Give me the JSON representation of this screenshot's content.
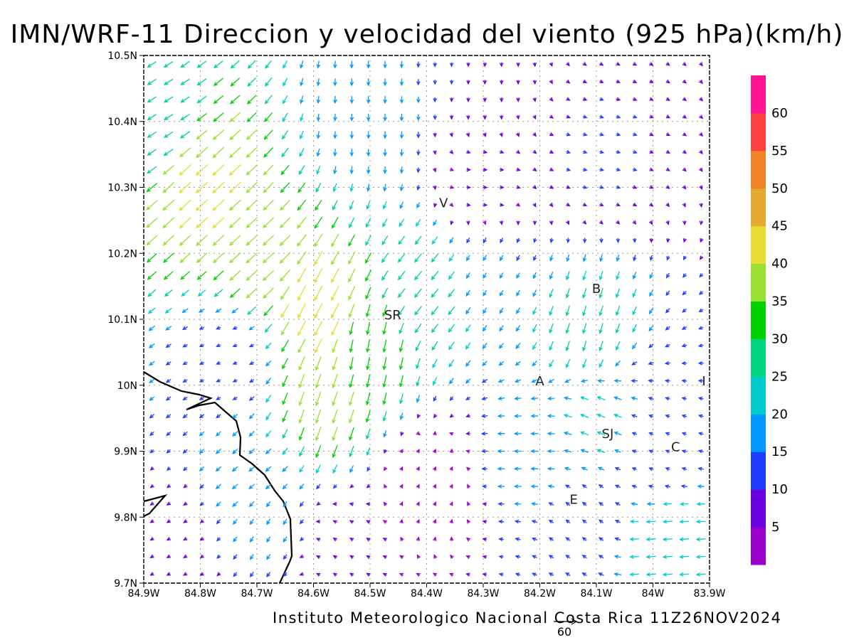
{
  "title": "IMN/WRF-11 Direccion y velocidad del viento (925 hPa)(km/h)",
  "footer": "Instituto Meteorologico Nacional Costa Rica 11Z26NOV2024",
  "map": {
    "lon_labels": [
      "84.9W",
      "84.8W",
      "84.7W",
      "84.6W",
      "84.5W",
      "84.4W",
      "84.3W",
      "84.2W",
      "84.1W",
      "84W",
      "83.9W"
    ],
    "lat_labels": [
      "9.7N",
      "9.8N",
      "9.9N",
      "10N",
      "10.1N",
      "10.2N",
      "10.3N",
      "10.4N",
      "10.5N"
    ],
    "lon_range": [
      -84.9,
      -83.9
    ],
    "lat_range": [
      9.7,
      10.5
    ],
    "grid": "dotted",
    "places": [
      {
        "label": "V",
        "lon": -84.37,
        "lat": 10.27
      },
      {
        "label": "SR",
        "lon": -84.46,
        "lat": 10.1
      },
      {
        "label": "B",
        "lon": -84.1,
        "lat": 10.14
      },
      {
        "label": "A",
        "lon": -84.2,
        "lat": 10.0
      },
      {
        "label": "I",
        "lon": -83.91,
        "lat": 10.0
      },
      {
        "label": "SJ",
        "lon": -84.08,
        "lat": 9.92
      },
      {
        "label": "C",
        "lon": -83.96,
        "lat": 9.9
      },
      {
        "label": "E",
        "lon": -84.14,
        "lat": 9.82
      }
    ]
  },
  "reference_vector": {
    "label": "60",
    "speed": 60
  },
  "colorbar": {
    "labels": [
      "5",
      "10",
      "15",
      "20",
      "25",
      "30",
      "35",
      "40",
      "45",
      "50",
      "55",
      "60"
    ],
    "colors": [
      "#9900cc",
      "#6a00e0",
      "#1f3cff",
      "#0099ff",
      "#00cccc",
      "#00d680",
      "#00d000",
      "#99e030",
      "#e6dc32",
      "#e6aa30",
      "#f08228",
      "#ff4040",
      "#ff1493"
    ]
  },
  "chart_data": {
    "type": "vector_field",
    "variable": "Direccion y velocidad del viento",
    "level": "925 hPa",
    "units": "km/h",
    "color_scale": {
      "min": 0,
      "max": 65,
      "step": 5
    },
    "regimes": [
      {
        "lon": -84.88,
        "lat": 10.4,
        "u": -22,
        "v": -14
      },
      {
        "lon": -84.8,
        "lat": 10.3,
        "u": -30,
        "v": -28
      },
      {
        "lon": -84.7,
        "lat": 10.18,
        "u": -28,
        "v": -26
      },
      {
        "lon": -84.6,
        "lat": 10.12,
        "u": -20,
        "v": -38
      },
      {
        "lon": -84.58,
        "lat": 9.97,
        "u": -12,
        "v": -36
      },
      {
        "lon": -84.5,
        "lat": 10.05,
        "u": -6,
        "v": -32
      },
      {
        "lon": -84.5,
        "lat": 10.4,
        "u": 0,
        "v": -18
      },
      {
        "lon": -84.4,
        "lat": 10.15,
        "u": -18,
        "v": -22
      },
      {
        "lon": -84.3,
        "lat": 10.45,
        "u": 0,
        "v": -10
      },
      {
        "lon": -84.3,
        "lat": 10.3,
        "u": 6,
        "v": 0
      },
      {
        "lon": -84.3,
        "lat": 10.18,
        "u": -8,
        "v": -14
      },
      {
        "lon": -84.1,
        "lat": 10.35,
        "u": 10,
        "v": -3
      },
      {
        "lon": -84.12,
        "lat": 10.08,
        "u": -8,
        "v": -26
      },
      {
        "lon": -84.1,
        "lat": 9.95,
        "u": -20,
        "v": 8
      },
      {
        "lon": -84.22,
        "lat": 9.9,
        "u": -18,
        "v": 0
      },
      {
        "lon": -84.0,
        "lat": 9.9,
        "u": -10,
        "v": 4
      },
      {
        "lon": -83.98,
        "lat": 9.76,
        "u": -24,
        "v": -2
      },
      {
        "lon": -84.12,
        "lat": 9.8,
        "u": -10,
        "v": 8
      },
      {
        "lon": -84.68,
        "lat": 9.8,
        "u": -8,
        "v": -14
      },
      {
        "lon": -84.7,
        "lat": 9.85,
        "u": -14,
        "v": -12
      },
      {
        "lon": -84.75,
        "lat": 10.05,
        "u": -10,
        "v": -4
      },
      {
        "lon": -84.4,
        "lat": 9.85,
        "u": 2,
        "v": 4
      },
      {
        "lon": -84.85,
        "lat": 9.75,
        "u": -5,
        "v": -3
      },
      {
        "lon": -84.55,
        "lat": 9.75,
        "u": -6,
        "v": 4
      }
    ]
  }
}
